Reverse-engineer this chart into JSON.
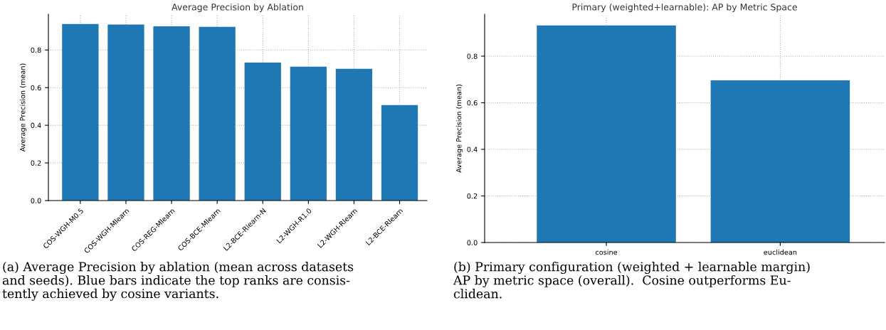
{
  "chart_data": [
    {
      "type": "bar",
      "title": "Average Precision by Ablation",
      "ylabel": "Average Precision (mean)",
      "categories": [
        "COS-WGH-M0.5",
        "COS-WGH-Mlearn",
        "COS-REG-Mlearn",
        "COS-BCE-Mlearn",
        "L2-BCE-Rlearn-N",
        "L2-WGH-R1.0",
        "L2-WGH-Rlearn",
        "L2-BCE-Rlearn"
      ],
      "values": [
        0.938,
        0.935,
        0.926,
        0.923,
        0.733,
        0.711,
        0.7,
        0.507
      ],
      "color": "#1f77b4",
      "ylim": [
        0,
        0.99
      ],
      "yticks": [
        {
          "value": 0,
          "label": "0.0"
        },
        0.2,
        0.4,
        0.6,
        0.8
      ],
      "grid": true,
      "annotations": [
        "(a) Average Precision by ablation (mean across datasets\nand seeds). Blue bars indicate the top ranks are consis-\ntently achieved by cosine variants."
      ]
    },
    {
      "type": "bar",
      "title": "Primary (weighted+learnable): AP by Metric Space",
      "ylabel": "Average Precision (mean)",
      "categories": [
        "cosine",
        "euclidean"
      ],
      "values": [
        0.932,
        0.696
      ],
      "color": "#1f77b4",
      "ylim": [
        0,
        0.98
      ],
      "yticks": [
        {
          "value": 0,
          "label": "0.0"
        },
        0.2,
        0.4,
        0.6,
        0.8
      ],
      "grid": true,
      "annotations": [
        "(b) Primary configuration (weighted + learnable margin)\nAP by metric space (overall).  Cosine outperforms Eu-\nclidean."
      ]
    }
  ]
}
